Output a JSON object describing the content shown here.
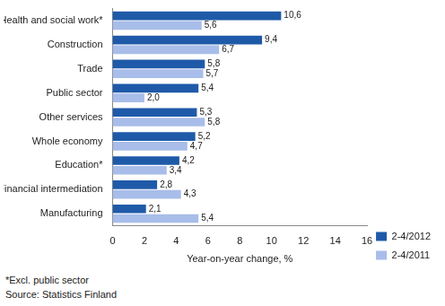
{
  "chart_data": {
    "type": "bar",
    "orientation": "horizontal",
    "categories": [
      "Health and social work*",
      "Construction",
      "Trade",
      "Public sector",
      "Other services",
      "Whole economy",
      "Education*",
      "Financial intermediation",
      "Manufacturing"
    ],
    "series": [
      {
        "name": "2-4/2012",
        "color": "#1f5aa8",
        "values": [
          10.6,
          9.4,
          5.8,
          5.4,
          5.3,
          5.2,
          4.2,
          2.8,
          2.1
        ],
        "value_labels": [
          "10,6",
          "9,4",
          "5,8",
          "5,4",
          "5,3",
          "5,2",
          "4,2",
          "2,8",
          "2,1"
        ]
      },
      {
        "name": "2-4/2011",
        "color": "#a8bde9",
        "values": [
          5.6,
          6.7,
          5.7,
          2.0,
          5.8,
          4.7,
          3.4,
          4.3,
          5.4
        ],
        "value_labels": [
          "5,6",
          "6,7",
          "5,7",
          "2,0",
          "5,8",
          "4,7",
          "3,4",
          "4,3",
          "5,4"
        ]
      }
    ],
    "x_label": "Year-on-year change, %",
    "xlim": [
      0,
      16
    ],
    "xticks": [
      0,
      2,
      4,
      6,
      8,
      10,
      12,
      14,
      16
    ],
    "grid": false,
    "legend": "right",
    "data_labels": true,
    "annotations": [
      "*Excl. public sector",
      "Source: Statistics Finland"
    ]
  }
}
